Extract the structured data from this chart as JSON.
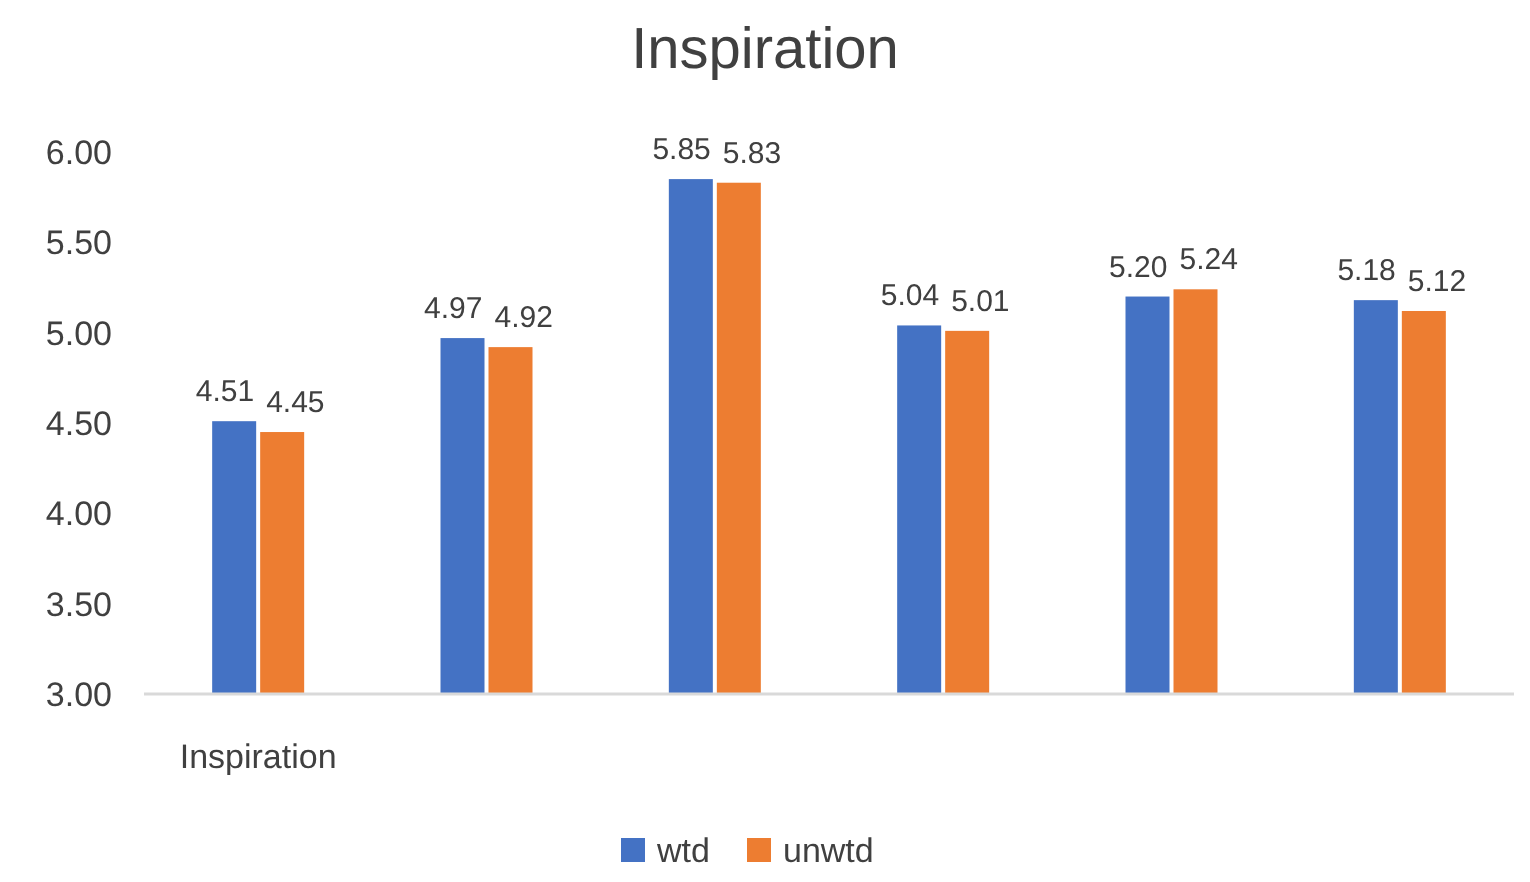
{
  "chart_data": {
    "type": "bar",
    "title": "Inspiration",
    "categories": [
      "Inspiration",
      null,
      null,
      null,
      null,
      null
    ],
    "series": [
      {
        "name": "wtd",
        "color": "#4472c4",
        "values": [
          4.51,
          4.97,
          5.85,
          5.04,
          5.2,
          5.18
        ],
        "value_labels": [
          "4.51",
          "4.97",
          "5.85",
          "5.04",
          "5.20",
          "5.18"
        ]
      },
      {
        "name": "unwtd",
        "color": "#ed7d31",
        "values": [
          4.45,
          4.92,
          5.83,
          5.01,
          5.24,
          5.12
        ],
        "value_labels": [
          "4.45",
          "4.92",
          "5.83",
          "5.01",
          "5.24",
          "5.12"
        ]
      }
    ],
    "ylim": [
      3,
      6
    ],
    "yticks": [
      {
        "value": 3,
        "label": "3.00"
      },
      {
        "value": 3.5,
        "label": "3.50"
      },
      {
        "value": 4,
        "label": "4.00"
      },
      {
        "value": 4.5,
        "label": "4.50"
      },
      {
        "value": 5,
        "label": "5.00"
      },
      {
        "value": 5.5,
        "label": "5.50"
      },
      {
        "value": 6,
        "label": "6.00"
      }
    ],
    "grid": false,
    "legend": "bottom"
  }
}
